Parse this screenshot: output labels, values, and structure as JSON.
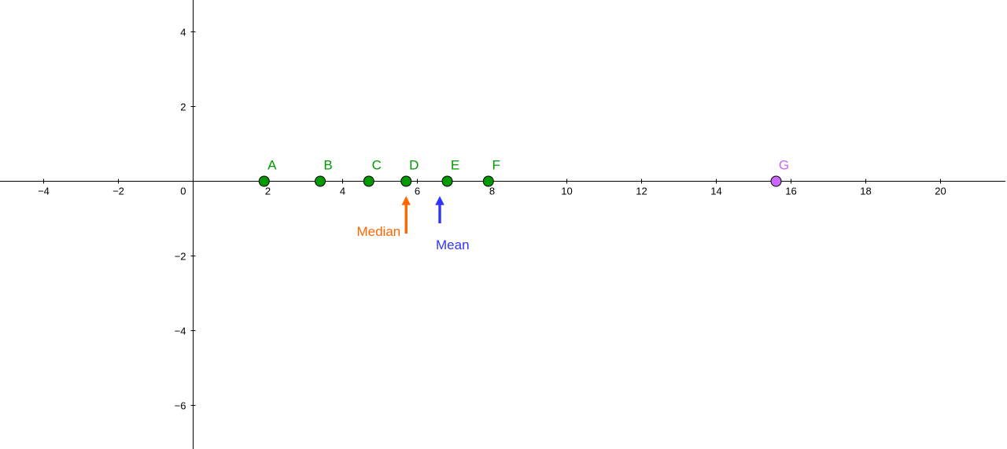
{
  "chart_data": {
    "type": "scatter",
    "title": "",
    "xlabel": "",
    "ylabel": "",
    "xlim": [
      -5.1,
      21.6
    ],
    "ylim": [
      -7.1,
      4.8
    ],
    "grid": false,
    "x_ticks": [
      -4,
      -2,
      0,
      2,
      4,
      6,
      8,
      10,
      12,
      14,
      16,
      18,
      20
    ],
    "y_ticks": [
      -6,
      -4,
      -2,
      2,
      4
    ],
    "points": [
      {
        "label": "A",
        "x": 1.9,
        "y": 0,
        "color": "#009900"
      },
      {
        "label": "B",
        "x": 3.4,
        "y": 0,
        "color": "#009900"
      },
      {
        "label": "C",
        "x": 4.7,
        "y": 0,
        "color": "#009900"
      },
      {
        "label": "D",
        "x": 5.7,
        "y": 0,
        "color": "#009900"
      },
      {
        "label": "E",
        "x": 6.8,
        "y": 0,
        "color": "#009900"
      },
      {
        "label": "F",
        "x": 7.9,
        "y": 0,
        "color": "#009900"
      },
      {
        "label": "G",
        "x": 15.6,
        "y": 0,
        "color": "#CC66FF"
      }
    ],
    "markers": [
      {
        "label": "Median",
        "x": 5.7,
        "color": "#FF6600"
      },
      {
        "label": "Mean",
        "x": 6.6,
        "color": "#3333FF"
      }
    ]
  }
}
